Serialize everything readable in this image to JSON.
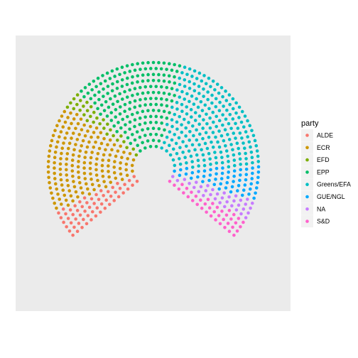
{
  "chart_data": {
    "type": "scatter",
    "title": "",
    "xlabel": "",
    "ylabel": "",
    "grid": false,
    "legend": {
      "title": "party",
      "placement": "right"
    },
    "arc": {
      "start_angle_deg": 220,
      "end_angle_deg": -40,
      "rows": 15
    },
    "series": [
      {
        "name": "ALDE",
        "seats": 59,
        "color": "#F8766D"
      },
      {
        "name": "ECR",
        "seats": 179,
        "color": "#CD9600"
      },
      {
        "name": "EFD",
        "seats": 31,
        "color": "#7CAE00"
      },
      {
        "name": "EPP",
        "seats": 189,
        "color": "#00BE67"
      },
      {
        "name": "Greens/EFA",
        "seats": 225,
        "color": "#00BFC4"
      },
      {
        "name": "GUE/NGL",
        "seats": 57,
        "color": "#00A9FF"
      },
      {
        "name": "NA",
        "seats": 35,
        "color": "#C77CFF"
      },
      {
        "name": "S&D",
        "seats": 40,
        "color": "#FF61CC"
      }
    ]
  }
}
